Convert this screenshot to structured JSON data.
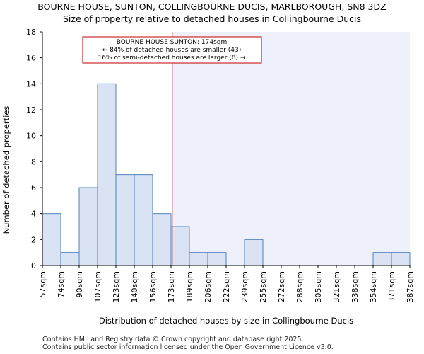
{
  "title": "BOURNE HOUSE, SUNTON, COLLINGBOURNE DUCIS, MARLBOROUGH, SN8 3DZ",
  "subtitle": "Size of property relative to detached houses in Collingbourne Ducis",
  "footer": [
    "Contains HM Land Registry data © Crown copyright and database right 2025.",
    "Contains public sector information licensed under the Open Government Licence v3.0."
  ],
  "colors": {
    "bar_fill": "#dae3f3",
    "bar_stroke": "#4f81bd",
    "highlight_bg": "#eef1fb",
    "marker": "#c00000",
    "annotation_border": "#c00000"
  },
  "chart_data": {
    "type": "bar",
    "title": "BOURNE HOUSE, SUNTON, COLLINGBOURNE DUCIS, MARLBOROUGH, SN8 3DZ",
    "subtitle": "Size of property relative to detached houses in Collingbourne Ducis",
    "xlabel": "Distribution of detached houses by size in Collingbourne Ducis",
    "ylabel": "Number of detached properties",
    "ylim": [
      0,
      18
    ],
    "yticks": [
      0,
      2,
      4,
      6,
      8,
      10,
      12,
      14,
      16,
      18
    ],
    "grid": false,
    "bin_edges": [
      "57sqm",
      "74sqm",
      "90sqm",
      "107sqm",
      "123sqm",
      "140sqm",
      "156sqm",
      "173sqm",
      "189sqm",
      "206sqm",
      "222sqm",
      "239sqm",
      "255sqm",
      "272sqm",
      "288sqm",
      "305sqm",
      "321sqm",
      "338sqm",
      "354sqm",
      "371sqm",
      "387sqm"
    ],
    "values": [
      4,
      1,
      6,
      14,
      7,
      7,
      4,
      3,
      1,
      1,
      0,
      2,
      0,
      0,
      0,
      0,
      0,
      0,
      1,
      1
    ],
    "marker_value_sqm": 174,
    "annotation": [
      "BOURNE HOUSE SUNTON: 174sqm",
      "← 84% of detached houses are smaller (43)",
      "16% of semi-detached houses are larger (8) →"
    ]
  }
}
